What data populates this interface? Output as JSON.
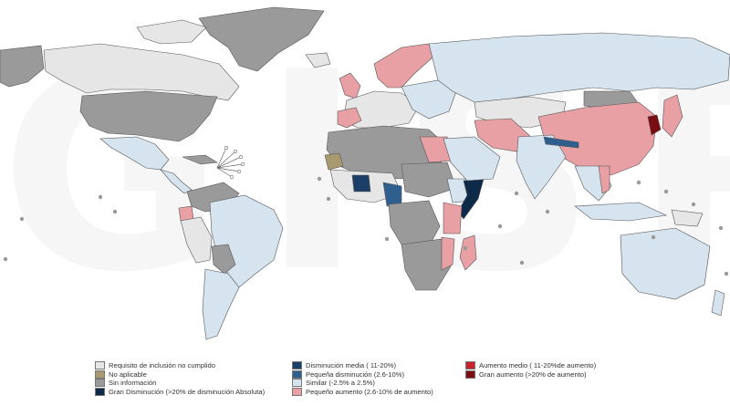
{
  "watermark": "GISRS",
  "colors": {
    "ocean": "#ffffff",
    "no_inclusion": "#e6e6e6",
    "not_applicable": "#a89a6e",
    "no_info": "#9a9a9a",
    "large_decrease": "#0d2a48",
    "medium_decrease": "#1b3f66",
    "small_decrease": "#2f5f8e",
    "similar": "#d5e4ef",
    "small_increase": "#e8a0a4",
    "medium_increase": "#c8232c",
    "large_increase": "#7a0d12",
    "border": "#555555"
  },
  "legend": [
    [
      {
        "key": "no_inclusion",
        "label": "Requisito de inclusión no cumplido"
      },
      {
        "key": "not_applicable",
        "label": "No aplicable"
      },
      {
        "key": "no_info",
        "label": "Sin información"
      },
      {
        "key": "large_decrease",
        "label": "Gran Disminución (>20% de disminución Absoluta)"
      }
    ],
    [
      {
        "key": "medium_decrease",
        "label": "Disminución media ( 11-20%)"
      },
      {
        "key": "small_decrease",
        "label": "Pequeña disminución (2.6-10%)"
      },
      {
        "key": "similar",
        "label": "Similar (-2.5% a 2.5%)"
      },
      {
        "key": "small_increase",
        "label": "Pequeño aumento (2.6-10% de aumento)"
      }
    ],
    [
      {
        "key": "medium_increase",
        "label": "Aumento medio ( 11-20%de aumento)"
      },
      {
        "key": "large_increase",
        "label": "Gran aumento (>20% de aumento)"
      }
    ]
  ]
}
